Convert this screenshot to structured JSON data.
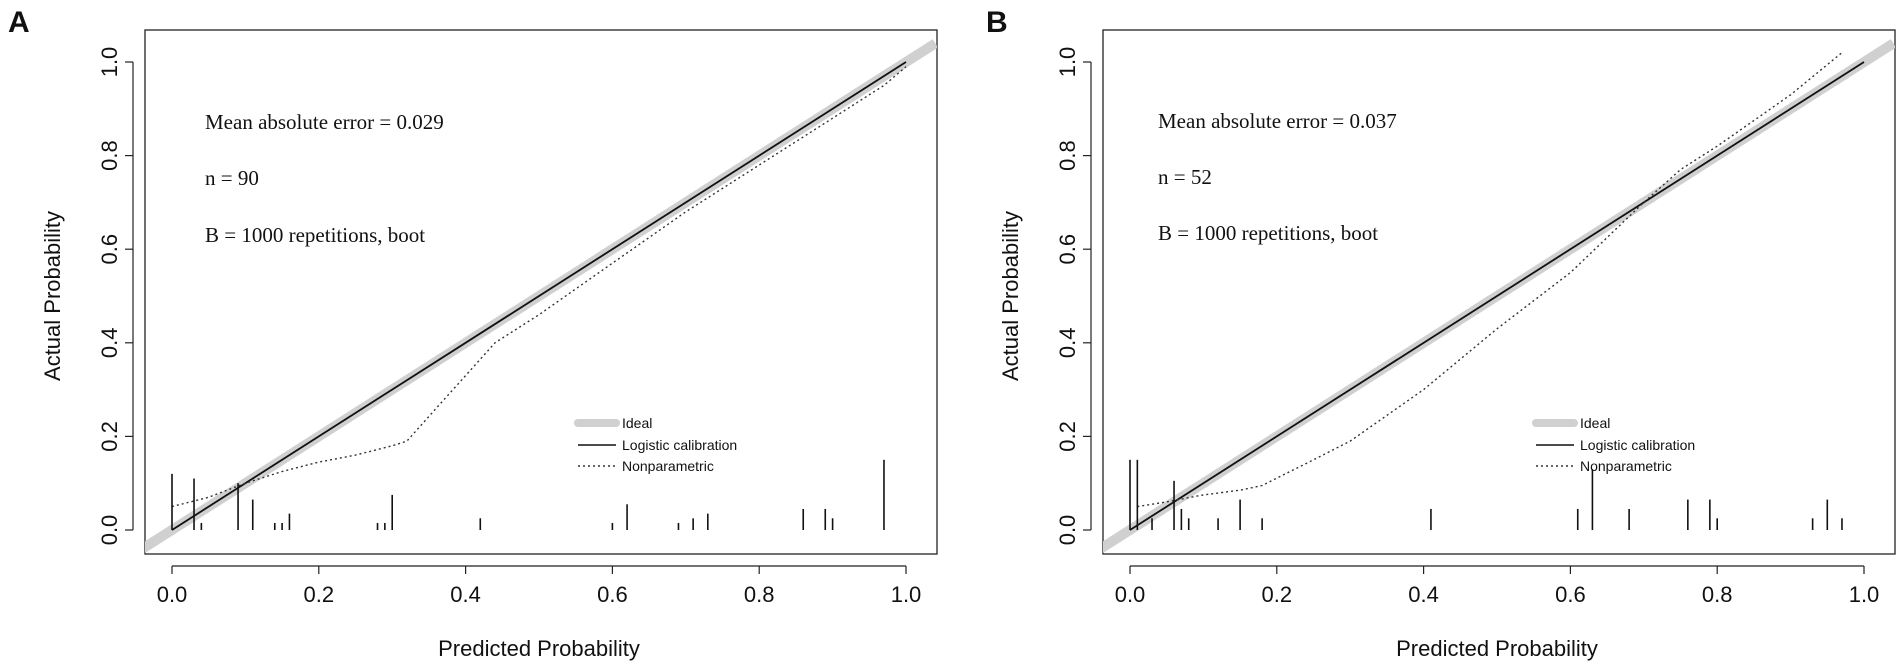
{
  "chart_data": [
    {
      "panel": "A",
      "type": "line",
      "xlabel": "Predicted Probability",
      "ylabel": "Actual Probability",
      "xlim": [
        0,
        1
      ],
      "ylim": [
        0,
        1
      ],
      "xticks": [
        "0.0",
        "0.2",
        "0.4",
        "0.6",
        "0.8",
        "1.0"
      ],
      "yticks": [
        "0.0",
        "0.2",
        "0.4",
        "0.6",
        "0.8",
        "1.0"
      ],
      "annotations": [
        "Mean absolute error = 0.029",
        "n = 90",
        "B = 1000 repetitions, boot"
      ],
      "legend": {
        "placement": "bottom-right",
        "entries": [
          "Ideal",
          "Logistic calibration",
          "Nonparametric"
        ]
      },
      "series": [
        {
          "name": "Ideal",
          "style": "thick-gray",
          "x": [
            -0.04,
            1.04
          ],
          "y": [
            -0.04,
            1.04
          ]
        },
        {
          "name": "Logistic calibration",
          "style": "solid",
          "x": [
            0,
            1
          ],
          "y": [
            0,
            1
          ]
        },
        {
          "name": "Nonparametric",
          "style": "dotted",
          "x": [
            0.0,
            0.05,
            0.1,
            0.15,
            0.2,
            0.25,
            0.3,
            0.32,
            0.36,
            0.4,
            0.44,
            0.5,
            0.6,
            0.7,
            0.8,
            0.9,
            0.97,
            1.0
          ],
          "y": [
            0.05,
            0.07,
            0.1,
            0.125,
            0.145,
            0.16,
            0.18,
            0.19,
            0.26,
            0.33,
            0.4,
            0.46,
            0.57,
            0.68,
            0.78,
            0.88,
            0.95,
            0.99
          ]
        }
      ],
      "rug": {
        "x": [
          0.0,
          0.03,
          0.04,
          0.09,
          0.11,
          0.14,
          0.15,
          0.16,
          0.28,
          0.29,
          0.3,
          0.42,
          0.6,
          0.62,
          0.69,
          0.71,
          0.73,
          0.86,
          0.89,
          0.9,
          0.97
        ],
        "h": [
          0.12,
          0.11,
          0.015,
          0.1,
          0.065,
          0.015,
          0.015,
          0.035,
          0.015,
          0.015,
          0.075,
          0.025,
          0.015,
          0.055,
          0.015,
          0.025,
          0.035,
          0.045,
          0.045,
          0.025,
          0.15
        ]
      }
    },
    {
      "panel": "B",
      "type": "line",
      "xlabel": "Predicted Probability",
      "ylabel": "Actual Probability",
      "xlim": [
        0,
        1
      ],
      "ylim": [
        0,
        1
      ],
      "xticks": [
        "0.0",
        "0.2",
        "0.4",
        "0.6",
        "0.8",
        "1.0"
      ],
      "yticks": [
        "0.0",
        "0.2",
        "0.4",
        "0.6",
        "0.8",
        "1.0"
      ],
      "annotations": [
        "Mean absolute error = 0.037",
        "n = 52",
        "B = 1000 repetitions, boot"
      ],
      "legend": {
        "placement": "bottom-right",
        "entries": [
          "Ideal",
          "Logistic calibration",
          "Nonparametric"
        ]
      },
      "series": [
        {
          "name": "Ideal",
          "style": "thick-gray",
          "x": [
            -0.04,
            1.04
          ],
          "y": [
            -0.04,
            1.04
          ]
        },
        {
          "name": "Logistic calibration",
          "style": "solid",
          "x": [
            0,
            1
          ],
          "y": [
            0,
            1
          ]
        },
        {
          "name": "Nonparametric",
          "style": "dotted",
          "x": [
            0.01,
            0.05,
            0.1,
            0.15,
            0.18,
            0.25,
            0.3,
            0.4,
            0.5,
            0.6,
            0.62,
            0.7,
            0.75,
            0.8,
            0.9,
            0.97
          ],
          "y": [
            0.05,
            0.06,
            0.075,
            0.085,
            0.095,
            0.15,
            0.19,
            0.3,
            0.43,
            0.55,
            0.58,
            0.7,
            0.77,
            0.82,
            0.93,
            1.02
          ]
        }
      ],
      "rug": {
        "x": [
          0.0,
          0.01,
          0.03,
          0.06,
          0.07,
          0.08,
          0.12,
          0.15,
          0.18,
          0.41,
          0.61,
          0.63,
          0.68,
          0.76,
          0.79,
          0.8,
          0.93,
          0.95,
          0.97
        ],
        "h": [
          0.15,
          0.15,
          0.025,
          0.105,
          0.045,
          0.025,
          0.025,
          0.065,
          0.025,
          0.045,
          0.045,
          0.13,
          0.045,
          0.065,
          0.065,
          0.025,
          0.025,
          0.065,
          0.025
        ]
      }
    }
  ]
}
